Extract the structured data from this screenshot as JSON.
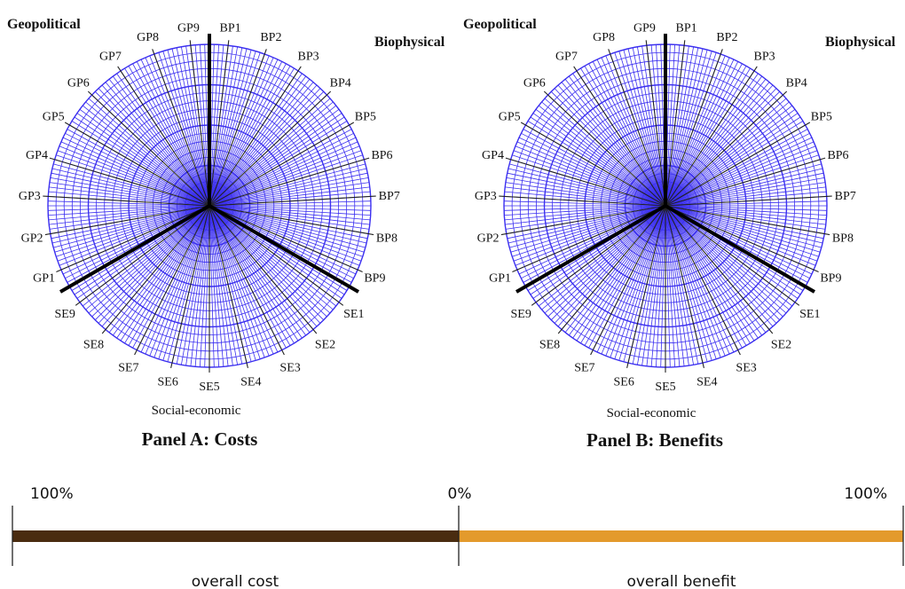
{
  "panels": [
    {
      "id": "a",
      "title": "Panel A: Costs",
      "sector_labels": {
        "geopolitical": "Geopolitical",
        "biophysical": "Biophysical",
        "socioeconomic": "Social-economic"
      },
      "axes": [
        "BP1",
        "BP2",
        "BP3",
        "BP4",
        "BP5",
        "BP6",
        "BP7",
        "BP8",
        "BP9",
        "SE1",
        "SE2",
        "SE3",
        "SE4",
        "SE5",
        "SE6",
        "SE7",
        "SE8",
        "SE9",
        "GP1",
        "GP2",
        "GP3",
        "GP4",
        "GP5",
        "GP6",
        "GP7",
        "GP8",
        "GP9"
      ]
    },
    {
      "id": "b",
      "title": "Panel B: Benefits",
      "sector_labels": {
        "geopolitical": "Geopolitical",
        "biophysical": "Biophysical",
        "socioeconomic": "Social-economic"
      },
      "axes": [
        "BP1",
        "BP2",
        "BP3",
        "BP4",
        "BP5",
        "BP6",
        "BP7",
        "BP8",
        "BP9",
        "SE1",
        "SE2",
        "SE3",
        "SE4",
        "SE5",
        "SE6",
        "SE7",
        "SE8",
        "SE9",
        "GP1",
        "GP2",
        "GP3",
        "GP4",
        "GP5",
        "GP6",
        "GP7",
        "GP8",
        "GP9"
      ]
    }
  ],
  "scale": {
    "left_label": "100%",
    "center_label": "0%",
    "right_label": "100%",
    "cost_caption": "overall cost",
    "benefit_caption": "overall benefit",
    "cost_color": "#4a2c10",
    "benefit_color": "#e39a2c"
  },
  "grid_color": "#3b2ff0"
}
